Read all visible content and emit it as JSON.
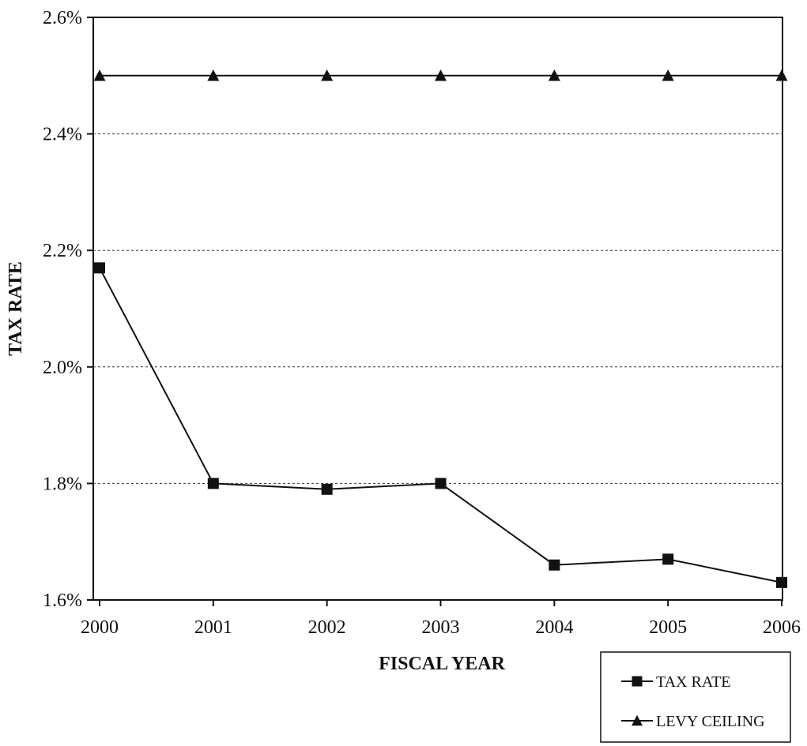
{
  "chart_data": {
    "type": "line",
    "title": "",
    "xlabel": "FISCAL YEAR",
    "ylabel": "TAX RATE",
    "x": [
      "2000",
      "2001",
      "2002",
      "2003",
      "2004",
      "2005",
      "2006"
    ],
    "ylim": [
      1.6,
      2.6
    ],
    "y_ticks": [
      1.6,
      1.8,
      2.0,
      2.2,
      2.4,
      2.6
    ],
    "y_tick_labels": [
      "1.6%",
      "1.8%",
      "2.0%",
      "2.2%",
      "2.4%",
      "2.6%"
    ],
    "grid": "horizontal dashed",
    "legend_position": "bottom-right, outside plot",
    "series": [
      {
        "name": "TAX RATE",
        "marker": "square",
        "color": "#111111",
        "values": [
          2.17,
          1.8,
          1.79,
          1.8,
          1.66,
          1.67,
          1.63
        ]
      },
      {
        "name": "LEVY CEILING",
        "marker": "triangle",
        "color": "#111111",
        "values": [
          2.5,
          2.5,
          2.5,
          2.5,
          2.5,
          2.5,
          2.5
        ]
      }
    ]
  }
}
